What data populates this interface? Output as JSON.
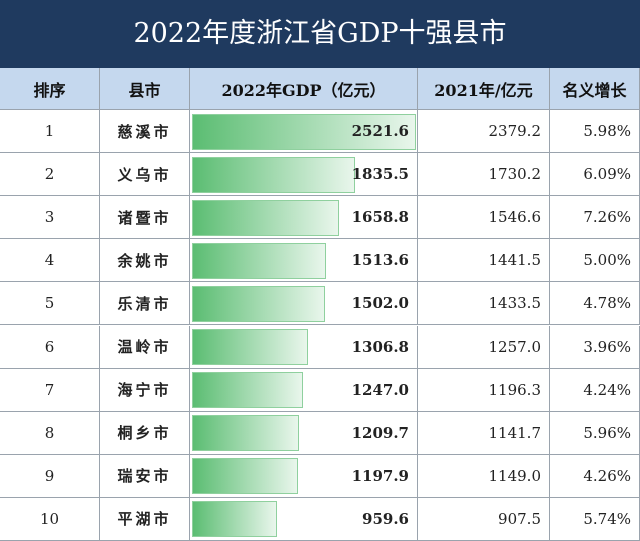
{
  "title": "2022年度浙江省GDP十强县市",
  "table": {
    "columns": [
      "排序",
      "县市",
      "2022年GDP（亿元）",
      "2021年/亿元",
      "名义增长"
    ],
    "rows": [
      [
        "1",
        "慈溪市",
        "2521.6",
        "2379.2",
        "5.98%"
      ],
      [
        "2",
        "义乌市",
        "1835.5",
        "1730.2",
        "6.09%"
      ],
      [
        "3",
        "诸暨市",
        "1658.8",
        "1546.6",
        "7.26%"
      ],
      [
        "4",
        "余姚市",
        "1513.6",
        "1441.5",
        "5.00%"
      ],
      [
        "5",
        "乐清市",
        "1502.0",
        "1433.5",
        "4.78%"
      ],
      [
        "6",
        "温岭市",
        "1306.8",
        "1257.0",
        "3.96%"
      ],
      [
        "7",
        "海宁市",
        "1247.0",
        "1196.3",
        "4.24%"
      ],
      [
        "8",
        "桐乡市",
        "1209.7",
        "1141.7",
        "5.96%"
      ],
      [
        "9",
        "瑞安市",
        "1197.9",
        "1149.0",
        "4.26%"
      ],
      [
        "10",
        "平湖市",
        "959.6",
        "907.5",
        "5.74%"
      ]
    ]
  }
}
